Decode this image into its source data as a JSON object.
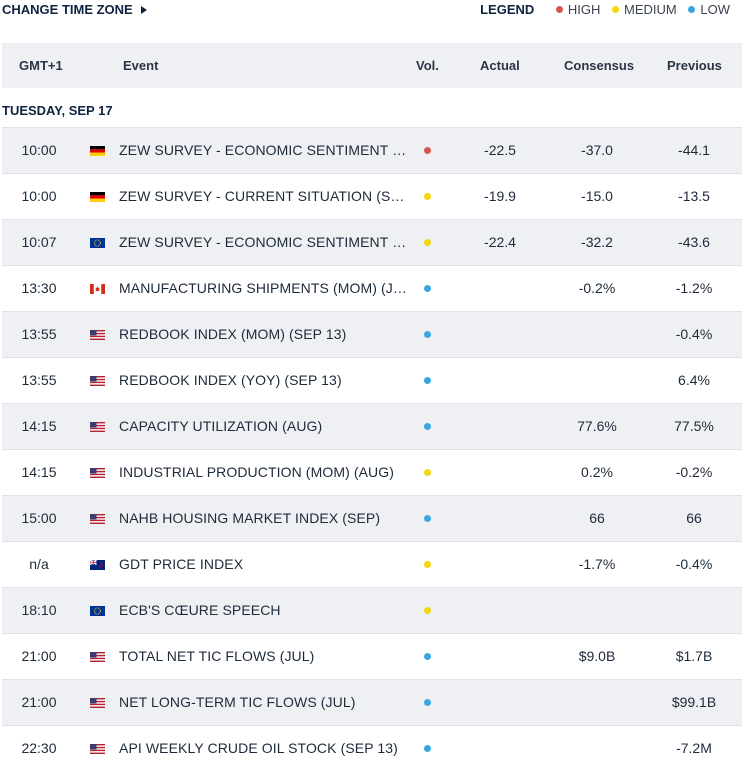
{
  "toolbar": {
    "change_tz": "CHANGE TIME ZONE"
  },
  "legend": {
    "title": "LEGEND",
    "items": [
      {
        "label": "HIGH",
        "color": "#d9534f"
      },
      {
        "label": "MEDIUM",
        "color": "#f5d60f"
      },
      {
        "label": "LOW",
        "color": "#3aa6e0"
      }
    ]
  },
  "columns": {
    "time": "GMT+1",
    "event": "Event",
    "vol": "Vol.",
    "actual": "Actual",
    "consensus": "Consensus",
    "previous": "Previous"
  },
  "date_heading": "TUESDAY, SEP 17",
  "rows": [
    {
      "time": "10:00",
      "flag": "de",
      "event": "ZEW SURVEY - ECONOMIC SENTIMENT (S...",
      "vol": "high",
      "actual": "-22.5",
      "consensus": "-37.0",
      "previous": "-44.1"
    },
    {
      "time": "10:00",
      "flag": "de",
      "event": "ZEW SURVEY - CURRENT SITUATION (SEP)",
      "vol": "medium",
      "actual": "-19.9",
      "consensus": "-15.0",
      "previous": "-13.5"
    },
    {
      "time": "10:07",
      "flag": "eu",
      "event": "ZEW SURVEY - ECONOMIC SENTIMENT (S...",
      "vol": "medium",
      "actual": "-22.4",
      "consensus": "-32.2",
      "previous": "-43.6"
    },
    {
      "time": "13:30",
      "flag": "ca",
      "event": "MANUFACTURING SHIPMENTS (MOM) (JUL)",
      "vol": "low",
      "actual": "",
      "consensus": "-0.2%",
      "previous": "-1.2%"
    },
    {
      "time": "13:55",
      "flag": "us",
      "event": "REDBOOK INDEX (MOM) (SEP 13)",
      "vol": "low",
      "actual": "",
      "consensus": "",
      "previous": "-0.4%"
    },
    {
      "time": "13:55",
      "flag": "us",
      "event": "REDBOOK INDEX (YOY) (SEP 13)",
      "vol": "low",
      "actual": "",
      "consensus": "",
      "previous": "6.4%"
    },
    {
      "time": "14:15",
      "flag": "us",
      "event": "CAPACITY UTILIZATION (AUG)",
      "vol": "low",
      "actual": "",
      "consensus": "77.6%",
      "previous": "77.5%"
    },
    {
      "time": "14:15",
      "flag": "us",
      "event": "INDUSTRIAL PRODUCTION (MOM) (AUG)",
      "vol": "medium",
      "actual": "",
      "consensus": "0.2%",
      "previous": "-0.2%"
    },
    {
      "time": "15:00",
      "flag": "us",
      "event": "NAHB HOUSING MARKET INDEX (SEP)",
      "vol": "low",
      "actual": "",
      "consensus": "66",
      "previous": "66"
    },
    {
      "time": "n/a",
      "flag": "nz",
      "event": "GDT PRICE INDEX",
      "vol": "medium",
      "actual": "",
      "consensus": "-1.7%",
      "previous": "-0.4%"
    },
    {
      "time": "18:10",
      "flag": "eu",
      "event": "ECB'S CŒURE SPEECH",
      "vol": "medium",
      "actual": "",
      "consensus": "",
      "previous": ""
    },
    {
      "time": "21:00",
      "flag": "us",
      "event": "TOTAL NET TIC FLOWS (JUL)",
      "vol": "low",
      "actual": "",
      "consensus": "$9.0B",
      "previous": "$1.7B"
    },
    {
      "time": "21:00",
      "flag": "us",
      "event": "NET LONG-TERM TIC FLOWS (JUL)",
      "vol": "low",
      "actual": "",
      "consensus": "",
      "previous": "$99.1B"
    },
    {
      "time": "22:30",
      "flag": "us",
      "event": "API WEEKLY CRUDE OIL STOCK (SEP 13)",
      "vol": "low",
      "actual": "",
      "consensus": "",
      "previous": "-7.2M"
    }
  ]
}
